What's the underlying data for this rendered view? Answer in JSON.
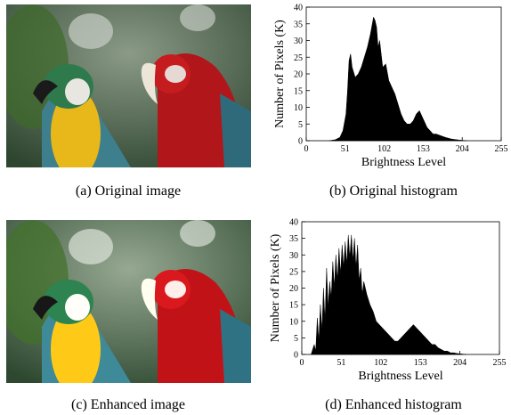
{
  "captions": [
    "(a) Original image",
    "(b) Original histogram",
    "(c) Enhanced image",
    "(d) Enhanced histogram"
  ],
  "chart_data": [
    {
      "type": "area",
      "color": "#000000",
      "xlabel": "Brightness Level",
      "ylabel": "Number of Pixels (K)",
      "xlim": [
        0,
        255
      ],
      "xticks": [
        0,
        51,
        102,
        153,
        204,
        255
      ],
      "ylim": [
        0,
        40
      ],
      "yticks": [
        0,
        5,
        10,
        15,
        20,
        25,
        30,
        35,
        40
      ],
      "x": [
        30,
        38,
        44,
        48,
        52,
        54,
        56,
        58,
        60,
        64,
        68,
        72,
        76,
        80,
        84,
        88,
        90,
        92,
        94,
        96,
        100,
        104,
        108,
        112,
        116,
        120,
        124,
        128,
        132,
        136,
        140,
        144,
        148,
        150,
        154,
        158,
        162,
        166,
        170,
        176,
        182,
        190,
        200,
        210
      ],
      "values": [
        0,
        0.3,
        1,
        3,
        8,
        15,
        24,
        26,
        22,
        19,
        20,
        22,
        25,
        28,
        32,
        37,
        36,
        34,
        28,
        30,
        22,
        23,
        18,
        16,
        14,
        11,
        8,
        6,
        5,
        5,
        6,
        8,
        9,
        8,
        6,
        4,
        3,
        2,
        2,
        1.5,
        1,
        0.5,
        0.2,
        0
      ]
    },
    {
      "type": "area",
      "color": "#000000",
      "xlabel": "Brightness Level",
      "ylabel": "Number of Pixels (K)",
      "xlim": [
        0,
        255
      ],
      "xticks": [
        0,
        51,
        102,
        153,
        204,
        255
      ],
      "ylim": [
        0,
        40
      ],
      "yticks": [
        0,
        5,
        10,
        15,
        20,
        25,
        30,
        35,
        40
      ],
      "x": [
        12,
        16,
        18,
        20,
        22,
        24,
        26,
        28,
        30,
        32,
        34,
        36,
        38,
        40,
        42,
        44,
        46,
        48,
        50,
        52,
        54,
        56,
        58,
        60,
        62,
        64,
        66,
        68,
        70,
        72,
        74,
        76,
        78,
        80,
        84,
        88,
        92,
        96,
        100,
        104,
        108,
        112,
        116,
        120,
        124,
        128,
        132,
        136,
        140,
        144,
        148,
        152,
        156,
        160,
        164,
        168,
        172,
        176,
        180,
        184,
        188,
        192,
        196,
        200,
        204,
        208,
        212
      ],
      "values": [
        0,
        3,
        1,
        11,
        4,
        15,
        7,
        20,
        10,
        26,
        14,
        22,
        17,
        28,
        20,
        30,
        22,
        32,
        24,
        33,
        26,
        34,
        27,
        36,
        29,
        36,
        28,
        35,
        26,
        33,
        22,
        26,
        18,
        22,
        18,
        15,
        13,
        10,
        9,
        8,
        7,
        6,
        5,
        4,
        4,
        5,
        6,
        7,
        8,
        9,
        8,
        7,
        6,
        5,
        4,
        3,
        3,
        2,
        1.5,
        1,
        1,
        0.5,
        0.5,
        0.3,
        0.2,
        0.1,
        0
      ]
    }
  ]
}
